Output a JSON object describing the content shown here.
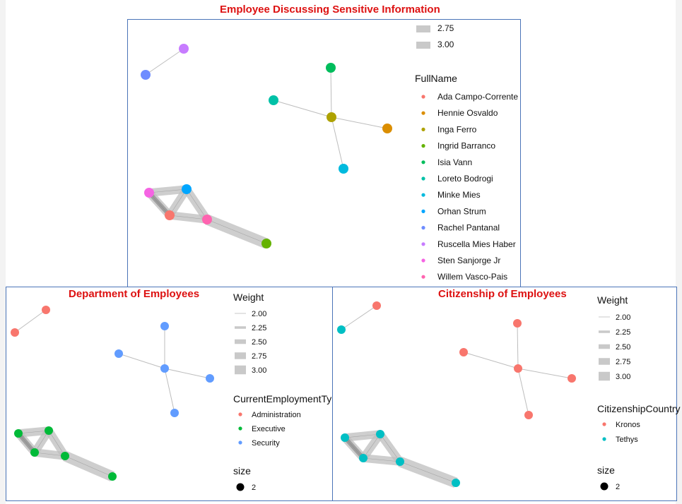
{
  "chart_data": [
    {
      "type": "network",
      "title": "Employee Discussing Sensitive Information",
      "legend": {
        "weight_keys": [
          "2.75",
          "3.00"
        ],
        "color_title": "FullName",
        "color_items": [
          {
            "label": "Ada Campo-Corrente",
            "color": "#F8766D"
          },
          {
            "label": "Hennie Osvaldo",
            "color": "#DB8E00"
          },
          {
            "label": "Inga Ferro",
            "color": "#AEA200"
          },
          {
            "label": "Ingrid Barranco",
            "color": "#64B200"
          },
          {
            "label": "Isia Vann",
            "color": "#00BD5C"
          },
          {
            "label": "Loreto Bodrogi",
            "color": "#00C1A7"
          },
          {
            "label": "Minke Mies",
            "color": "#00BADE"
          },
          {
            "label": "Orhan Strum",
            "color": "#00A6FF"
          },
          {
            "label": "Rachel Pantanal",
            "color": "#6E8CFF"
          },
          {
            "label": "Ruscella Mies Haber",
            "color": "#C77CFF"
          },
          {
            "label": "Sten Sanjorge Jr",
            "color": "#F564E3"
          },
          {
            "label": "Willem Vasco-Pais",
            "color": "#FF64B0"
          }
        ]
      }
    },
    {
      "type": "network",
      "title": "Department of Employees",
      "legend": {
        "weight_title": "Weight",
        "weight_keys": [
          "2.00",
          "2.25",
          "2.50",
          "2.75",
          "3.00"
        ],
        "color_title": "CurrentEmploymentType",
        "color_items": [
          {
            "label": "Administration",
            "color": "#F8766D"
          },
          {
            "label": "Executive",
            "color": "#00BA38"
          },
          {
            "label": "Security",
            "color": "#619CFF"
          }
        ],
        "size_title": "size",
        "size_value": "2"
      }
    },
    {
      "type": "network",
      "title": "Citizenship of Employees",
      "legend": {
        "weight_title": "Weight",
        "weight_keys": [
          "2.00",
          "2.25",
          "2.50",
          "2.75",
          "3.00"
        ],
        "color_title": "CitizenshipCountry",
        "color_items": [
          {
            "label": "Kronos",
            "color": "#F8766D"
          },
          {
            "label": "Tethys",
            "color": "#00BFC4"
          }
        ],
        "size_title": "size",
        "size_value": "2"
      }
    }
  ],
  "network": {
    "nodes": [
      {
        "id": "ada",
        "name": "Ada Campo-Corrente",
        "department": "Executive",
        "citizenship": "Tethys"
      },
      {
        "id": "hennie",
        "name": "Hennie Osvaldo",
        "department": "Security",
        "citizenship": "Kronos"
      },
      {
        "id": "inga",
        "name": "Inga Ferro",
        "department": "Security",
        "citizenship": "Kronos"
      },
      {
        "id": "ingrid",
        "name": "Ingrid Barranco",
        "department": "Executive",
        "citizenship": "Tethys"
      },
      {
        "id": "isia",
        "name": "Isia Vann",
        "department": "Security",
        "citizenship": "Kronos"
      },
      {
        "id": "loreto",
        "name": "Loreto Bodrogi",
        "department": "Security",
        "citizenship": "Kronos"
      },
      {
        "id": "minke",
        "name": "Minke Mies",
        "department": "Security",
        "citizenship": "Kronos"
      },
      {
        "id": "orhan",
        "name": "Orhan Strum",
        "department": "Executive",
        "citizenship": "Tethys"
      },
      {
        "id": "rachel",
        "name": "Rachel Pantanal",
        "department": "Administration",
        "citizenship": "Tethys"
      },
      {
        "id": "ruscella",
        "name": "Ruscella Mies Haber",
        "department": "Administration",
        "citizenship": "Kronos"
      },
      {
        "id": "sten",
        "name": "Sten Sanjorge Jr",
        "department": "Executive",
        "citizenship": "Tethys"
      },
      {
        "id": "willem",
        "name": "Willem Vasco-Pais",
        "department": "Executive",
        "citizenship": "Tethys"
      }
    ],
    "edges": [
      {
        "from": "rachel",
        "to": "ruscella",
        "weight": 2.0
      },
      {
        "from": "isia",
        "to": "inga",
        "weight": 2.0
      },
      {
        "from": "loreto",
        "to": "inga",
        "weight": 2.0
      },
      {
        "from": "inga",
        "to": "hennie",
        "weight": 2.0
      },
      {
        "from": "inga",
        "to": "minke",
        "weight": 2.0
      },
      {
        "from": "sten",
        "to": "orhan",
        "weight": 2.75
      },
      {
        "from": "sten",
        "to": "ada",
        "weight": 2.75
      },
      {
        "from": "orhan",
        "to": "ada",
        "weight": 2.75
      },
      {
        "from": "orhan",
        "to": "willem",
        "weight": 2.75
      },
      {
        "from": "ada",
        "to": "willem",
        "weight": 2.75
      },
      {
        "from": "willem",
        "to": "ingrid",
        "weight": 3.0
      }
    ]
  }
}
